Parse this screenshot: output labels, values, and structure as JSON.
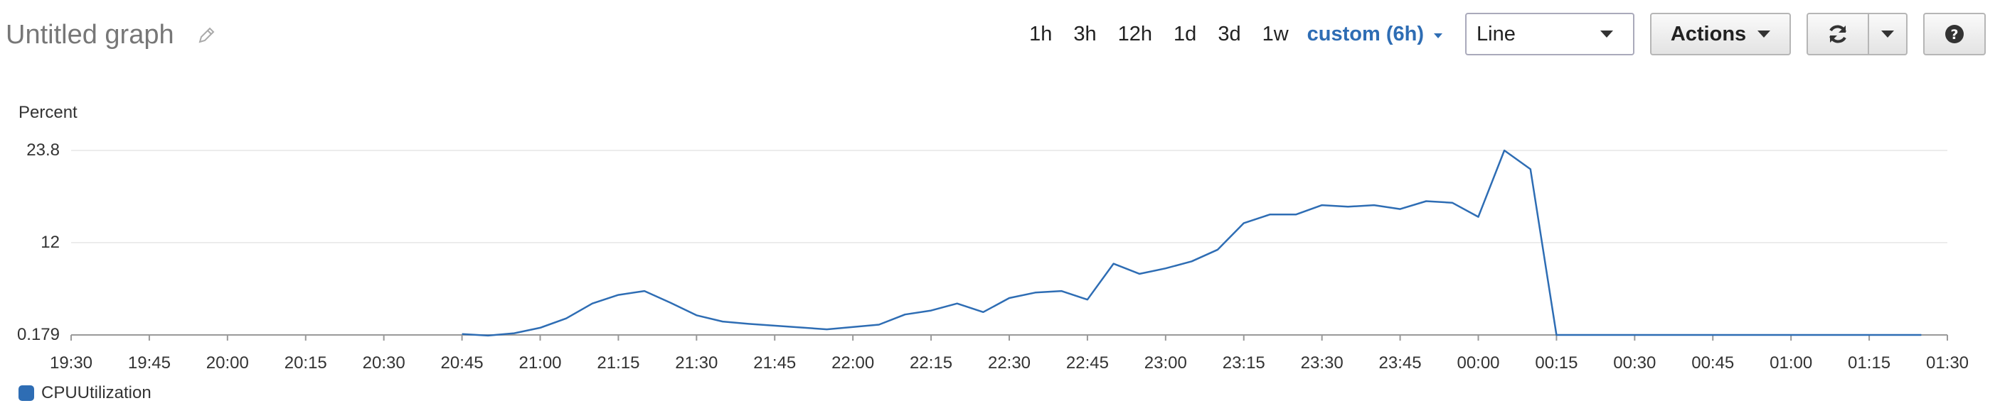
{
  "header": {
    "title": "Untitled graph",
    "edit_icon": "pencil-icon"
  },
  "toolbar": {
    "ranges": [
      "1h",
      "3h",
      "12h",
      "1d",
      "3d",
      "1w"
    ],
    "custom_range": "custom (6h)",
    "chart_type_select": "Line",
    "actions_label": "Actions",
    "refresh_icon": "refresh-icon",
    "dropdown_icon": "caret-down-icon",
    "help_icon": "question-icon"
  },
  "chart_data": {
    "type": "line",
    "ylabel": "Percent",
    "yticks": [
      0.179,
      12,
      23.8
    ],
    "ytick_labels": [
      "0.179",
      "12",
      "23.8"
    ],
    "ylim": [
      0.179,
      23.8
    ],
    "x_start": "19:30",
    "x_end": "01:30",
    "xtick_labels": [
      "19:30",
      "19:45",
      "20:00",
      "20:15",
      "20:30",
      "20:45",
      "21:00",
      "21:15",
      "21:30",
      "21:45",
      "22:00",
      "22:15",
      "22:30",
      "22:45",
      "23:00",
      "23:15",
      "23:30",
      "23:45",
      "00:00",
      "00:15",
      "00:30",
      "00:45",
      "01:00",
      "01:15",
      "01:30"
    ],
    "grid": true,
    "legend_position": "bottom-left",
    "series": [
      {
        "name": "CPUUtilization",
        "color": "#2e6db4",
        "points": [
          [
            "20:45",
            0.3
          ],
          [
            "20:50",
            0.1
          ],
          [
            "20:55",
            0.4
          ],
          [
            "21:00",
            1.1
          ],
          [
            "21:05",
            2.3
          ],
          [
            "21:10",
            4.2
          ],
          [
            "21:15",
            5.3
          ],
          [
            "21:20",
            5.8
          ],
          [
            "21:25",
            4.3
          ],
          [
            "21:30",
            2.7
          ],
          [
            "21:35",
            1.9
          ],
          [
            "21:40",
            1.6
          ],
          [
            "21:55",
            0.9
          ],
          [
            "22:05",
            1.5
          ],
          [
            "22:10",
            2.8
          ],
          [
            "22:15",
            3.3
          ],
          [
            "22:20",
            4.2
          ],
          [
            "22:25",
            3.1
          ],
          [
            "22:30",
            4.9
          ],
          [
            "22:35",
            5.6
          ],
          [
            "22:40",
            5.8
          ],
          [
            "22:45",
            4.7
          ],
          [
            "22:50",
            9.3
          ],
          [
            "22:55",
            8.0
          ],
          [
            "23:00",
            8.7
          ],
          [
            "23:05",
            9.6
          ],
          [
            "23:10",
            11.1
          ],
          [
            "23:15",
            14.5
          ],
          [
            "23:20",
            15.6
          ],
          [
            "23:25",
            15.6
          ],
          [
            "23:30",
            16.8
          ],
          [
            "23:35",
            16.6
          ],
          [
            "23:40",
            16.8
          ],
          [
            "23:45",
            16.3
          ],
          [
            "23:50",
            17.3
          ],
          [
            "23:55",
            17.1
          ],
          [
            "00:00",
            15.3
          ],
          [
            "00:05",
            23.8
          ],
          [
            "00:10",
            21.4
          ],
          [
            "00:15",
            0.179
          ],
          [
            "00:20",
            0.179
          ],
          [
            "00:30",
            0.179
          ],
          [
            "00:45",
            0.179
          ],
          [
            "01:00",
            0.179
          ],
          [
            "01:15",
            0.179
          ],
          [
            "01:25",
            0.179
          ]
        ]
      }
    ]
  }
}
